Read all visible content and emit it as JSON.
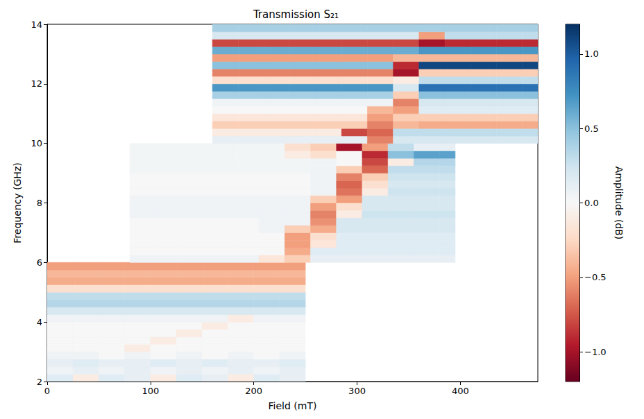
{
  "chart_data": {
    "type": "heatmap",
    "title": "Transmission S₂₁",
    "x_label": "Field (mT)",
    "y_label": "Frequency (GHz)",
    "xlim": [
      0,
      475
    ],
    "xticks": [
      0,
      100,
      200,
      300,
      400
    ],
    "ylim": [
      2,
      14
    ],
    "yticks": [
      2,
      4,
      6,
      8,
      10,
      12,
      14
    ],
    "panels": [
      {
        "x_edges": [
          0,
          25,
          50,
          75,
          100,
          125,
          150,
          175,
          200,
          225,
          250
        ],
        "y_edges": [
          2,
          2.25,
          2.5,
          2.75,
          3,
          3.25,
          3.5,
          3.75,
          4,
          4.25,
          4.5,
          4.75,
          5,
          5.25,
          5.5,
          5.75,
          6
        ],
        "values": [
          [
            0.15,
            -0.1,
            0.15,
            0.1,
            -0.1,
            0.15,
            0.1,
            -0.1,
            0.15,
            0.1
          ],
          [
            0.05,
            0.1,
            0.05,
            0.1,
            0.05,
            0.1,
            0.05,
            0.1,
            0.05,
            0.1
          ],
          [
            0.1,
            0.15,
            0.1,
            0.1,
            0.15,
            0.1,
            0.15,
            0.1,
            0.1,
            0.15
          ],
          [
            0.05,
            0.05,
            0,
            0.05,
            0,
            0.05,
            0,
            0.05,
            0,
            0.05
          ],
          [
            0,
            0,
            0,
            -0.1,
            0,
            0,
            0,
            0,
            0,
            0
          ],
          [
            0,
            0,
            0,
            0,
            -0.1,
            0,
            0,
            0,
            0,
            0
          ],
          [
            0,
            0,
            0,
            0,
            0,
            -0.1,
            0,
            0,
            0,
            0
          ],
          [
            0,
            0,
            0,
            0,
            0,
            0,
            -0.1,
            0,
            0,
            0
          ],
          [
            0.05,
            0.05,
            0.05,
            0.05,
            0.05,
            0.05,
            0.05,
            -0.1,
            0.05,
            0.05
          ],
          [
            0.2,
            0.2,
            0.2,
            0.2,
            0.2,
            0.2,
            0.2,
            0.2,
            0.2,
            0.2
          ],
          [
            0.35,
            0.35,
            0.35,
            0.35,
            0.35,
            0.35,
            0.35,
            0.35,
            0.35,
            0.35
          ],
          [
            0.3,
            0.3,
            0.3,
            0.3,
            0.3,
            0.3,
            0.3,
            0.3,
            0.3,
            0.3
          ],
          [
            -0.2,
            -0.2,
            -0.2,
            -0.2,
            -0.2,
            -0.2,
            -0.2,
            -0.2,
            -0.2,
            -0.2
          ],
          [
            -0.45,
            -0.45,
            -0.45,
            -0.45,
            -0.45,
            -0.45,
            -0.45,
            -0.45,
            -0.45,
            -0.45
          ],
          [
            -0.4,
            -0.4,
            -0.4,
            -0.4,
            -0.4,
            -0.4,
            -0.4,
            -0.4,
            -0.4,
            -0.4
          ],
          [
            -0.5,
            -0.5,
            -0.5,
            -0.5,
            -0.5,
            -0.5,
            -0.5,
            -0.5,
            -0.5,
            -0.5
          ]
        ]
      },
      {
        "x_edges": [
          80,
          105,
          130,
          155,
          180,
          205,
          230,
          255,
          280,
          305,
          330,
          355,
          380,
          395
        ],
        "y_edges": [
          6,
          6.25,
          6.5,
          6.75,
          7,
          7.25,
          7.5,
          7.75,
          8,
          8.25,
          8.5,
          8.75,
          9,
          9.25,
          9.5,
          9.75,
          10
        ],
        "values": [
          [
            0.05,
            0.05,
            0.05,
            0.05,
            0.05,
            -0.15,
            -0.3,
            0.1,
            0.1,
            0.1,
            0.1,
            0.1,
            0.1
          ],
          [
            0,
            0,
            0,
            0,
            0,
            0,
            -0.45,
            0.15,
            0.15,
            0.15,
            0.15,
            0.15,
            0.15
          ],
          [
            0,
            0,
            0,
            0,
            0,
            0,
            -0.5,
            -0.15,
            0.15,
            0.15,
            0.15,
            0.15,
            0.15
          ],
          [
            0,
            0,
            0,
            0,
            0,
            0,
            -0.5,
            -0.2,
            0.15,
            0.15,
            0.15,
            0.15,
            0.15
          ],
          [
            0,
            0,
            0,
            0,
            0,
            0.05,
            -0.3,
            -0.45,
            0.2,
            0.2,
            0.2,
            0.2,
            0.2
          ],
          [
            0,
            0,
            0,
            0,
            0,
            0.05,
            0.05,
            -0.55,
            0.2,
            0.2,
            0.2,
            0.2,
            0.2
          ],
          [
            0.05,
            0.05,
            0.05,
            0.05,
            0.05,
            0.05,
            0.05,
            -0.6,
            -0.1,
            0.25,
            0.25,
            0.25,
            0.25
          ],
          [
            0.05,
            0.05,
            0.05,
            0.05,
            0.05,
            0.05,
            0.05,
            -0.5,
            -0.2,
            0.2,
            0.2,
            0.2,
            0.2
          ],
          [
            0.05,
            0.05,
            0.05,
            0.05,
            0.05,
            0.05,
            0.05,
            -0.3,
            -0.5,
            0.2,
            0.2,
            0.2,
            0.2
          ],
          [
            0,
            0,
            0,
            0,
            0,
            0,
            0,
            0.05,
            -0.65,
            -0.1,
            0.25,
            0.25,
            0.25
          ],
          [
            0,
            0,
            0,
            0,
            0,
            0,
            0,
            0.05,
            -0.7,
            -0.2,
            0.2,
            0.2,
            0.2
          ],
          [
            0,
            0,
            0,
            0,
            0,
            0,
            0,
            0.05,
            -0.6,
            -0.3,
            0.25,
            0.25,
            0.25
          ],
          [
            0.03,
            0.03,
            0.03,
            0.03,
            0.03,
            0.03,
            0.03,
            0.05,
            -0.3,
            -0.7,
            0.3,
            0.3,
            0.3
          ],
          [
            0.03,
            0.03,
            0.03,
            0.03,
            0.03,
            0.03,
            0.03,
            0.05,
            0,
            -0.8,
            -0.1,
            0.35,
            0.35
          ],
          [
            0.03,
            0.03,
            0.03,
            0.03,
            0.03,
            0.03,
            -0.1,
            -0.2,
            0,
            -0.9,
            0.5,
            0.65,
            0.65
          ],
          [
            0.03,
            0.03,
            0.03,
            0.03,
            0.03,
            0.03,
            -0.2,
            -0.3,
            -1.0,
            -0.5,
            0.3,
            0.1,
            0.1
          ]
        ]
      },
      {
        "x_edges": [
          160,
          185,
          210,
          235,
          260,
          285,
          310,
          335,
          360,
          385,
          410,
          435,
          460,
          475
        ],
        "y_edges": [
          10,
          10.25,
          10.5,
          10.75,
          11,
          11.25,
          11.5,
          11.75,
          12,
          12.25,
          12.5,
          12.75,
          13,
          13.25,
          13.5,
          13.75,
          14
        ],
        "values": [
          [
            0.1,
            0.1,
            0.1,
            0.1,
            0.1,
            0.1,
            -0.6,
            0.2,
            0.2,
            0.2,
            0.2,
            0.2,
            0.2
          ],
          [
            -0.1,
            -0.1,
            -0.1,
            -0.1,
            -0.1,
            -0.8,
            -0.7,
            0.3,
            0.3,
            0.3,
            0.3,
            0.3,
            0.3
          ],
          [
            -0.3,
            -0.3,
            -0.3,
            -0.3,
            -0.3,
            -0.3,
            -0.6,
            -0.4,
            -0.45,
            -0.45,
            -0.45,
            -0.45,
            -0.45
          ],
          [
            -0.15,
            -0.15,
            -0.15,
            -0.15,
            -0.15,
            -0.15,
            -0.5,
            -0.3,
            -0.3,
            -0.3,
            -0.3,
            -0.3,
            -0.3
          ],
          [
            0,
            0,
            0,
            0,
            0,
            0,
            -0.4,
            -0.5,
            0.15,
            0.15,
            0.15,
            0.15,
            0.15
          ],
          [
            0.05,
            0.05,
            0.05,
            0.05,
            0.05,
            0.05,
            0.05,
            -0.6,
            0.2,
            0.2,
            0.2,
            0.2,
            0.2
          ],
          [
            0.4,
            0.4,
            0.4,
            0.4,
            0.4,
            0.4,
            0.4,
            -0.3,
            0.5,
            0.5,
            0.5,
            0.5,
            0.5
          ],
          [
            0.7,
            0.7,
            0.7,
            0.7,
            0.7,
            0.7,
            0.7,
            0.2,
            0.9,
            0.9,
            0.9,
            0.9,
            0.9
          ],
          [
            -0.2,
            -0.2,
            -0.2,
            -0.2,
            -0.2,
            -0.2,
            -0.2,
            -0.1,
            0.3,
            0.3,
            0.3,
            0.3,
            0.3
          ],
          [
            -0.6,
            -0.6,
            -0.6,
            -0.6,
            -0.6,
            -0.6,
            -0.6,
            -1.0,
            -0.3,
            -0.3,
            -0.3,
            -0.3,
            -0.3
          ],
          [
            0.5,
            0.5,
            0.5,
            0.5,
            0.5,
            0.5,
            0.5,
            -0.9,
            1.1,
            1.1,
            1.1,
            1.1,
            1.1
          ],
          [
            -0.5,
            -0.5,
            -0.5,
            -0.5,
            -0.5,
            -0.5,
            -0.5,
            -0.4,
            -0.4,
            -0.4,
            -0.4,
            -0.4,
            -0.4
          ],
          [
            0.6,
            0.6,
            0.6,
            0.6,
            0.6,
            0.6,
            0.6,
            0.6,
            0.7,
            0.7,
            0.7,
            0.7,
            0.7
          ],
          [
            -0.8,
            -0.8,
            -0.8,
            -0.8,
            -0.8,
            -0.8,
            -0.8,
            -0.8,
            -1.0,
            -0.9,
            -0.9,
            -0.9,
            -0.9
          ],
          [
            0.2,
            0.2,
            0.2,
            0.2,
            0.2,
            0.2,
            0.2,
            0.2,
            -0.5,
            0.3,
            0.3,
            0.3,
            0.3
          ],
          [
            0.4,
            0.4,
            0.4,
            0.4,
            0.4,
            0.4,
            0.4,
            0.4,
            0.4,
            0.4,
            0.4,
            0.4,
            0.4
          ]
        ]
      }
    ],
    "colorbar": {
      "label": "Amplitude (dB)",
      "range": [
        -1.2,
        1.2
      ],
      "ticks": [
        {
          "value": -1.0,
          "label": "−1.0"
        },
        {
          "value": -0.5,
          "label": "−0.5"
        },
        {
          "value": 0.0,
          "label": "0.0"
        },
        {
          "value": 0.5,
          "label": "0.5"
        },
        {
          "value": 1.0,
          "label": "1.0"
        }
      ],
      "colors": [
        "#67001f",
        "#b2182b",
        "#d6604d",
        "#f4a582",
        "#fddbc7",
        "#f7f7f7",
        "#d1e5f0",
        "#92c5de",
        "#4393c3",
        "#2166ac",
        "#053061"
      ]
    }
  }
}
